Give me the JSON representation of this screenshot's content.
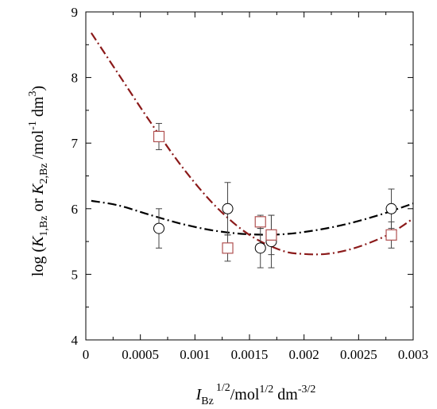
{
  "chart_data": {
    "type": "scatter",
    "xlim": [
      0,
      0.003
    ],
    "ylim": [
      4,
      9
    ],
    "x_ticks": [
      0,
      0.0005,
      0.001,
      0.0015,
      0.002,
      0.0025,
      0.003
    ],
    "x_tick_labels": [
      "0",
      "0.0005",
      "0.001",
      "0.0015",
      "0.002",
      "0.0025",
      "0.003"
    ],
    "y_ticks": [
      4,
      5,
      6,
      7,
      8,
      9
    ],
    "y_tick_labels": [
      "4",
      "5",
      "6",
      "7",
      "8",
      "9"
    ],
    "xlabel": {
      "I": "I",
      "sub": "Bz",
      "sup1": "1/2",
      "mid": "/mol",
      "sup2": "1/2",
      "dm": " dm",
      "sup3": "-3/2"
    },
    "ylabel": {
      "pre": "log (",
      "K1": "K",
      "sub1": "1,Bz",
      "or": " or ",
      "K2": "K",
      "sub2": "2,Bz",
      "unit": " /mol",
      "sup1": "-1",
      "dm": " dm",
      "sup2": "3",
      "post": ")"
    },
    "grid": false,
    "series": [
      {
        "marker": "circle",
        "color": "#000000",
        "points": [
          {
            "x": 0.00067,
            "y": 5.7,
            "err": 0.3
          },
          {
            "x": 0.0013,
            "y": 6.0,
            "err": 0.4
          },
          {
            "x": 0.0016,
            "y": 5.4,
            "err": 0.3
          },
          {
            "x": 0.0017,
            "y": 5.5,
            "err": 0.4
          },
          {
            "x": 0.0028,
            "y": 6.0,
            "err": 0.3
          }
        ],
        "fit": {
          "x": [
            5e-05,
            0.0003,
            0.0006,
            0.0009,
            0.0012,
            0.0015,
            0.0018,
            0.0021,
            0.0024,
            0.0027,
            0.003
          ],
          "y": [
            6.12,
            6.05,
            5.9,
            5.76,
            5.66,
            5.61,
            5.61,
            5.67,
            5.77,
            5.91,
            6.08
          ]
        }
      },
      {
        "marker": "square",
        "color": "#b05050",
        "points": [
          {
            "x": 0.00067,
            "y": 7.1,
            "err": 0.2
          },
          {
            "x": 0.0013,
            "y": 5.4,
            "err": 0.2
          },
          {
            "x": 0.0016,
            "y": 5.8,
            "err": 0.1
          },
          {
            "x": 0.0017,
            "y": 5.6,
            "err": 0.3
          },
          {
            "x": 0.0028,
            "y": 5.6,
            "err": 0.2
          }
        ],
        "fit": {
          "x": [
            5e-05,
            0.0003,
            0.0006,
            0.0009,
            0.0012,
            0.0015,
            0.0018,
            0.002,
            0.0022,
            0.0024,
            0.0026,
            0.0028,
            0.003
          ],
          "y": [
            8.68,
            8.05,
            7.3,
            6.6,
            6.02,
            5.6,
            5.36,
            5.31,
            5.31,
            5.37,
            5.48,
            5.63,
            5.85
          ]
        }
      }
    ],
    "fit_colors": [
      "#000000",
      "#8b1a1a"
    ]
  }
}
